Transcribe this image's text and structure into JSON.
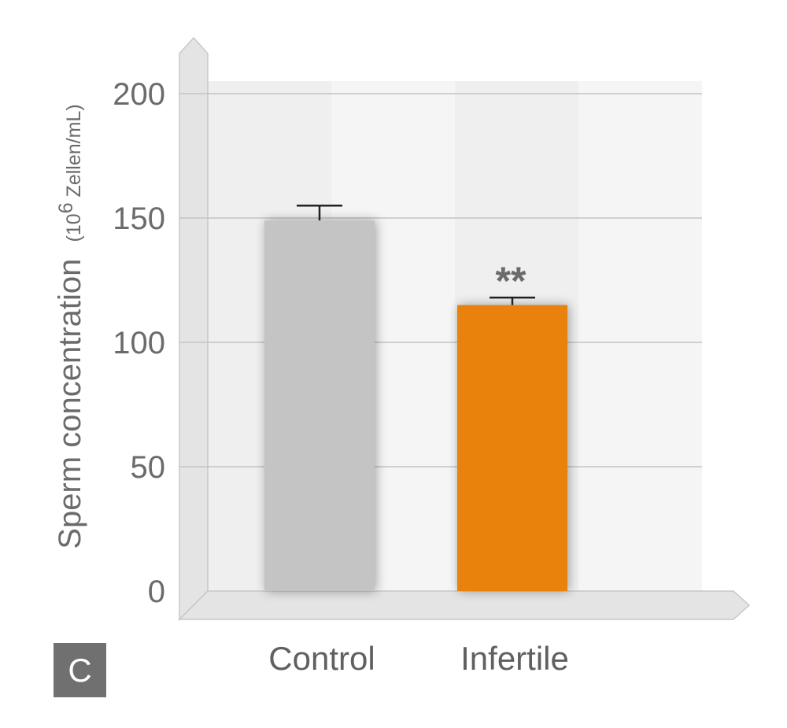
{
  "panel_label": "C",
  "chart_data": {
    "type": "bar",
    "categories": [
      "Control",
      "Infertile"
    ],
    "values": [
      149,
      115
    ],
    "error_plus": [
      6,
      3
    ],
    "ylabel": "Sperm concentration",
    "ylabel_unit_prefix": "(10",
    "ylabel_unit_exp": "6",
    "ylabel_unit_suffix": " Zellen/mL)",
    "ylim": [
      0,
      200
    ],
    "yticks": [
      0,
      50,
      100,
      150,
      200
    ],
    "grid": true,
    "annotations": [
      {
        "category": "Infertile",
        "text": "**"
      }
    ],
    "colors": {
      "Control": "#c4c4c4",
      "Infertile": "#e8820a"
    }
  }
}
